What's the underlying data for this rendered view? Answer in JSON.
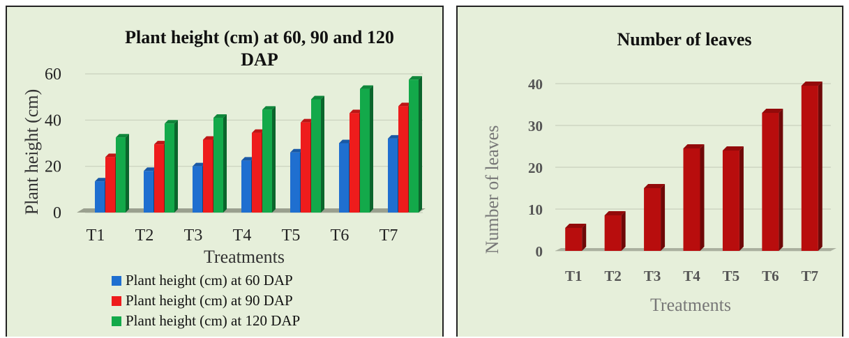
{
  "chart_data": [
    {
      "type": "bar",
      "title": "Plant height (cm) at 60, 90 and 120 DAP",
      "title_lines": [
        "Plant height (cm) at 60, 90 and 120",
        "DAP"
      ],
      "xlabel": "Treatments",
      "ylabel": "Plant height (cm)",
      "categories": [
        "T1",
        "T2",
        "T3",
        "T4",
        "T5",
        "T6",
        "T7"
      ],
      "ylim": [
        0,
        60
      ],
      "yticks": [
        "0",
        "20",
        "40",
        "60"
      ],
      "grid": true,
      "legend": "bottom",
      "series": [
        {
          "name": "Plant height (cm) at 60 DAP",
          "color": "#1f6fd0",
          "values": [
            13.5,
            18,
            20,
            22.5,
            26,
            30,
            32
          ]
        },
        {
          "name": "Plant height (cm) at 90 DAP",
          "color": "#ee1c1c",
          "values": [
            24,
            29.5,
            31.5,
            34.5,
            39,
            43,
            46
          ]
        },
        {
          "name": "Plant height (cm) at 120 DAP",
          "color": "#13a94a",
          "values": [
            32.5,
            38.5,
            41,
            44.5,
            49,
            53.5,
            57.5
          ]
        }
      ]
    },
    {
      "type": "bar",
      "title": "Number of leaves",
      "xlabel": "Treatments",
      "ylabel": "Number of leaves",
      "categories": [
        "T1",
        "T2",
        "T3",
        "T4",
        "T5",
        "T6",
        "T7"
      ],
      "ylim": [
        0,
        40
      ],
      "yticks": [
        "0",
        "10",
        "20",
        "30",
        "40"
      ],
      "grid": true,
      "series": [
        {
          "color": "#b80d0d",
          "values": [
            5.5,
            8.5,
            15,
            24.5,
            24,
            33,
            39.5
          ]
        }
      ]
    }
  ]
}
